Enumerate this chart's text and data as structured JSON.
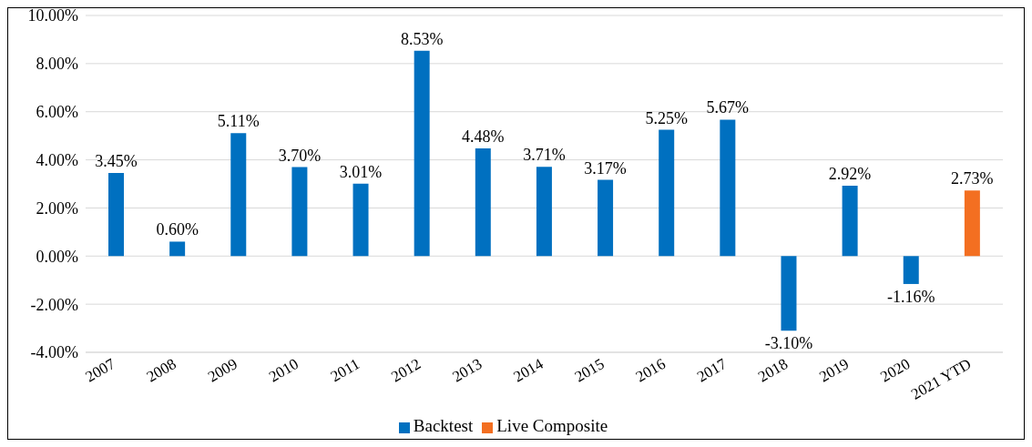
{
  "chart_data": {
    "type": "bar",
    "categories": [
      "2007",
      "2008",
      "2009",
      "2010",
      "2011",
      "2012",
      "2013",
      "2014",
      "2015",
      "2016",
      "2017",
      "2018",
      "2019",
      "2020",
      "2021 YTD"
    ],
    "series": [
      {
        "name": "Backtest",
        "color": "#0070c0",
        "values": [
          3.45,
          0.6,
          5.11,
          3.7,
          3.01,
          8.53,
          4.48,
          3.71,
          3.17,
          5.25,
          5.67,
          -3.1,
          2.92,
          -1.16,
          null
        ],
        "value_labels": [
          "3.45%",
          "0.60%",
          "5.11%",
          "3.70%",
          "3.01%",
          "8.53%",
          "4.48%",
          "3.71%",
          "3.17%",
          "5.25%",
          "5.67%",
          "-3.10%",
          "2.92%",
          "-1.16%",
          null
        ]
      },
      {
        "name": "Live Composite",
        "color": "#f36f21",
        "values": [
          null,
          null,
          null,
          null,
          null,
          null,
          null,
          null,
          null,
          null,
          null,
          null,
          null,
          null,
          2.73
        ],
        "value_labels": [
          null,
          null,
          null,
          null,
          null,
          null,
          null,
          null,
          null,
          null,
          null,
          null,
          null,
          null,
          "2.73%"
        ]
      }
    ],
    "ylim": [
      -4,
      10
    ],
    "yticks": [
      {
        "value": -4,
        "label": "-4.00%"
      },
      {
        "value": -2,
        "label": "-2.00%"
      },
      {
        "value": 0,
        "label": "0.00%"
      },
      {
        "value": 2,
        "label": "2.00%"
      },
      {
        "value": 4,
        "label": "4.00%"
      },
      {
        "value": 6,
        "label": "6.00%"
      },
      {
        "value": 8,
        "label": "8.00%"
      },
      {
        "value": 10,
        "label": "10.00%"
      }
    ],
    "grid": "y",
    "legend": "bottom"
  }
}
